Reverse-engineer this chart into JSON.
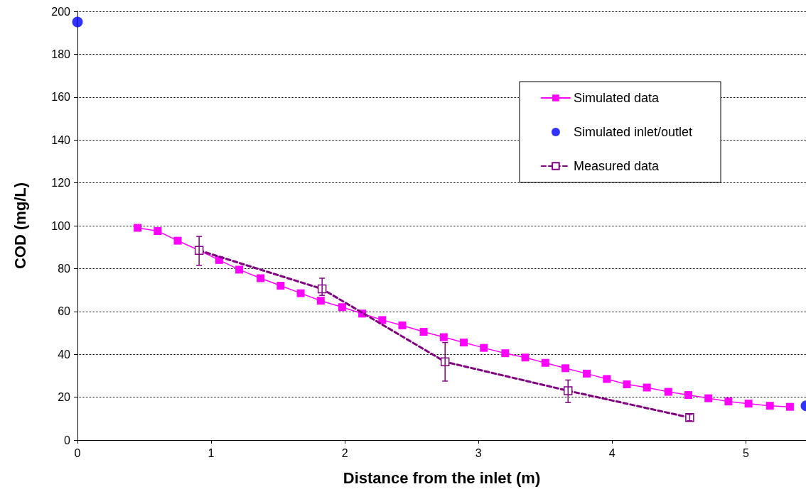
{
  "chart_data": {
    "type": "line",
    "xlabel": "Distance from the inlet (m)",
    "ylabel": "COD (mg/L)",
    "xlim": [
      0,
      5.45
    ],
    "xticks": [
      0,
      1,
      2,
      3,
      4,
      5
    ],
    "ylim": [
      0,
      200
    ],
    "yticks": [
      0,
      20,
      40,
      60,
      80,
      100,
      120,
      140,
      160,
      180,
      200
    ],
    "grid": "y",
    "legend": "top right",
    "series": [
      {
        "name": "Simulated data",
        "color": "#ff00ff",
        "marker": "square",
        "line_style": "solid",
        "x": [
          0.45,
          0.6,
          0.75,
          0.91,
          1.06,
          1.21,
          1.37,
          1.52,
          1.67,
          1.82,
          1.98,
          2.13,
          2.28,
          2.43,
          2.59,
          2.74,
          2.89,
          3.04,
          3.2,
          3.35,
          3.5,
          3.65,
          3.81,
          3.96,
          4.11,
          4.26,
          4.42,
          4.57,
          4.72,
          4.87,
          5.02,
          5.18,
          5.33
        ],
        "values": [
          99,
          97.5,
          93,
          88.5,
          84,
          79.5,
          75.5,
          72,
          68.5,
          65,
          62,
          59,
          56,
          53.5,
          50.5,
          48,
          45.5,
          43,
          40.5,
          38.5,
          36,
          33.5,
          31,
          28.5,
          26,
          24.5,
          22.5,
          21,
          19.5,
          18,
          17,
          16,
          15.5
        ]
      },
      {
        "name": "Simulated inlet/outlet",
        "type": "scatter",
        "color": "#0000ff",
        "marker": "circle",
        "x": [
          0,
          5.45
        ],
        "values": [
          195,
          16
        ]
      },
      {
        "name": "Measured data",
        "color": "#800080",
        "marker": "square",
        "line_style": "dashed",
        "x": [
          0.91,
          1.83,
          2.75,
          3.67,
          4.58
        ],
        "values": [
          88.5,
          70.5,
          36.5,
          23,
          10.5
        ],
        "errors": [
          [
            81.5,
            95
          ],
          [
            67.5,
            75.5
          ],
          [
            27.5,
            45.5
          ],
          [
            17.5,
            28
          ],
          [
            9,
            12
          ]
        ]
      }
    ]
  }
}
